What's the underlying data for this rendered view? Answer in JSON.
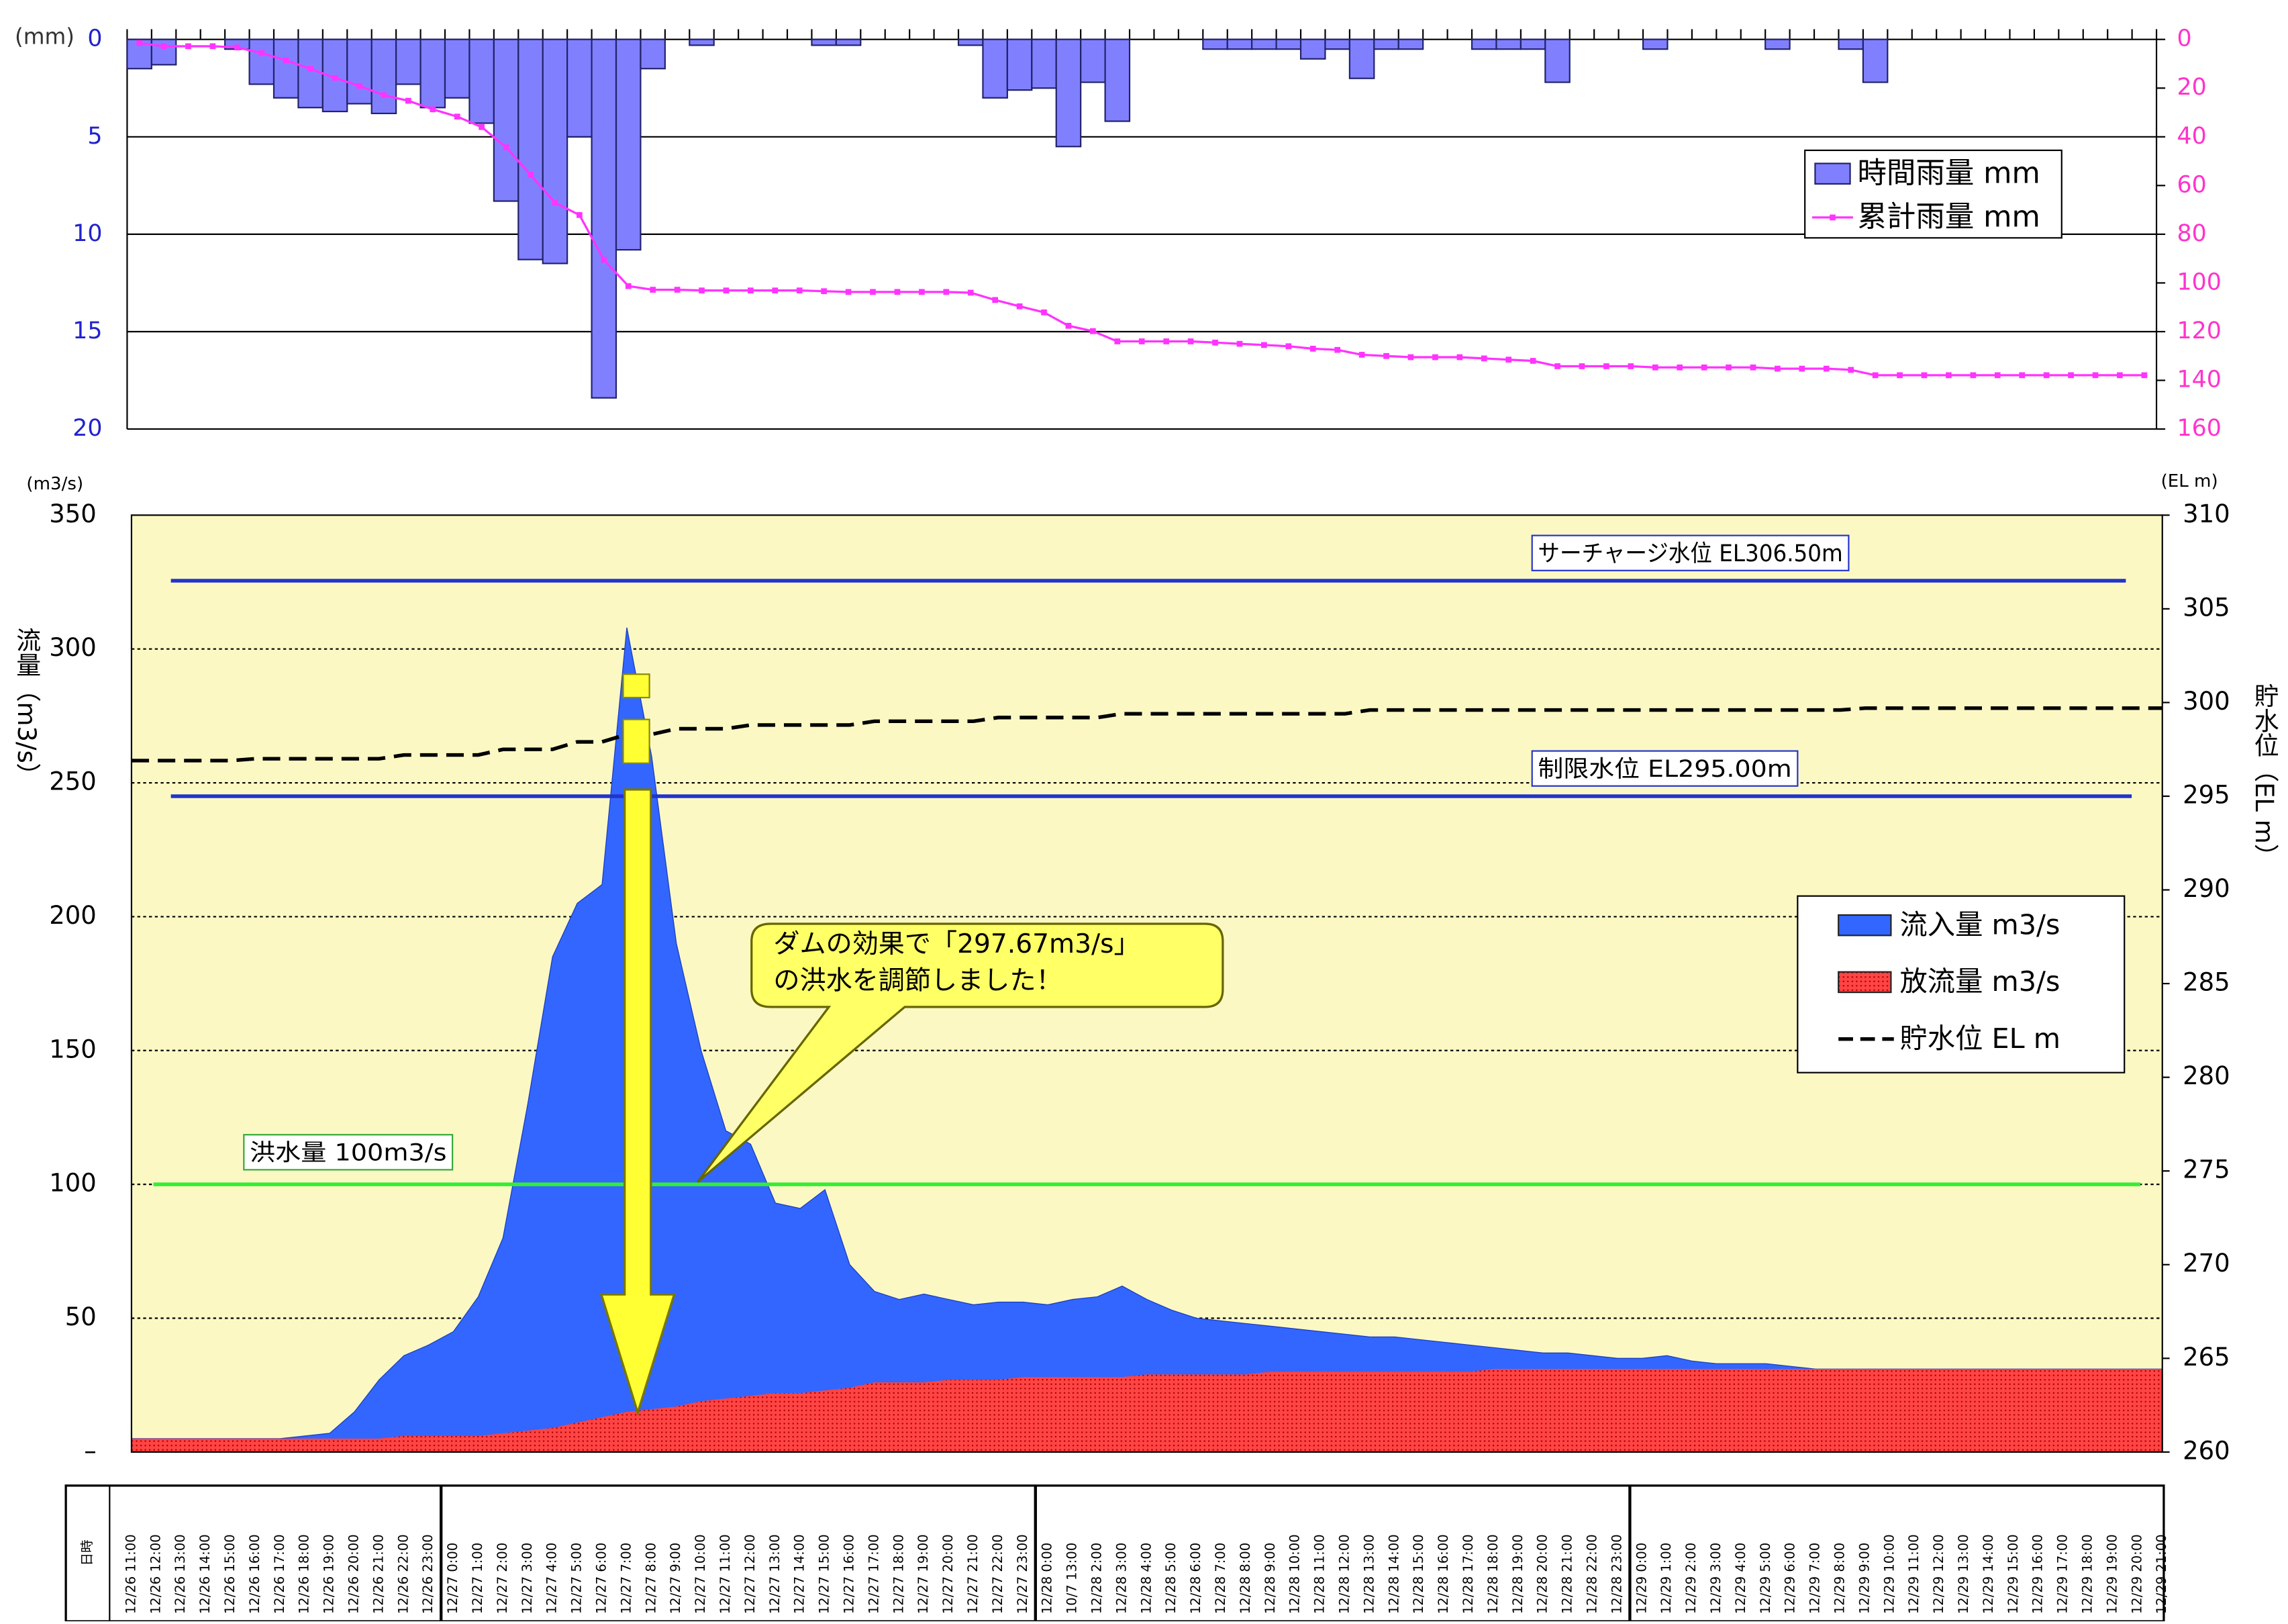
{
  "chart_data": [
    {
      "type": "bar-line",
      "unit_label": "(mm)",
      "inverted": true,
      "ylim": [
        0,
        20
      ],
      "yticks": [
        0,
        5,
        10,
        15,
        20
      ],
      "y2lim": [
        0,
        160
      ],
      "y2ticks": [
        0,
        20,
        40,
        60,
        80,
        100,
        120,
        140,
        160
      ],
      "grid": true,
      "legend": "upper right",
      "series": [
        {
          "name": "時間雨量 mm",
          "type": "bar",
          "color": "#8080ff",
          "values": [
            1.5,
            1.3,
            0,
            0,
            0.5,
            2.3,
            3.0,
            3.5,
            3.7,
            3.3,
            3.8,
            2.3,
            3.5,
            3.0,
            4.3,
            8.3,
            11.3,
            11.5,
            5.0,
            18.4,
            10.8,
            1.5,
            0,
            0.3,
            0,
            0,
            0,
            0,
            0.3,
            0.3,
            0,
            0,
            0,
            0,
            0.3,
            3.0,
            2.6,
            2.5,
            5.5,
            2.2,
            4.2,
            0,
            0,
            0,
            0.5,
            0.5,
            0.5,
            0.5,
            1.0,
            0.5,
            2.0,
            0.5,
            0.5,
            0,
            0,
            0.5,
            0.5,
            0.5,
            2.2,
            0,
            0,
            0,
            0.5,
            0,
            0,
            0,
            0,
            0.5,
            0,
            0,
            0.5,
            2.2,
            0,
            0,
            0,
            0,
            0,
            0,
            0,
            0,
            0,
            0,
            0
          ]
        },
        {
          "name": "累計雨量 mm",
          "type": "line",
          "color": "#ff33ff",
          "axis": "y2",
          "values": [
            1.5,
            2.8,
            2.8,
            2.8,
            3.3,
            5.6,
            8.6,
            12.1,
            15.8,
            19.1,
            22.9,
            25.2,
            28.7,
            31.7,
            36.0,
            44.3,
            55.6,
            67.1,
            72.1,
            90.5,
            101.3,
            102.8,
            102.8,
            103.1,
            103.1,
            103.1,
            103.1,
            103.1,
            103.4,
            103.7,
            103.7,
            103.7,
            103.7,
            103.7,
            104.0,
            107.0,
            109.6,
            112.1,
            117.6,
            119.8,
            124.0,
            124.0,
            124.0,
            124.0,
            124.5,
            125.0,
            125.5,
            126.0,
            127.0,
            127.5,
            129.5,
            130.0,
            130.5,
            130.5,
            130.5,
            131.0,
            131.5,
            132.0,
            134.2,
            134.2,
            134.2,
            134.2,
            134.7,
            134.7,
            134.7,
            134.7,
            134.7,
            135.2,
            135.2,
            135.2,
            135.7,
            137.9,
            137.9,
            137.9,
            137.9,
            137.9,
            137.9,
            137.9,
            137.9,
            137.9,
            137.9,
            137.9,
            137.9
          ]
        }
      ]
    },
    {
      "type": "area",
      "unit_label": "(m3/s)",
      "unit2_label": "(EL m)",
      "ylabel": "流量（m3/s）",
      "y2label": "貯水位（EL m）",
      "x_header": "日時",
      "ylim": [
        0,
        350
      ],
      "yticks": [
        {
          "value": 0,
          "label": "–"
        },
        50,
        100,
        150,
        200,
        250,
        300,
        350
      ],
      "y2lim": [
        260,
        310
      ],
      "y2ticks": [
        260,
        265,
        270,
        275,
        280,
        285,
        290,
        295,
        300,
        305,
        310
      ],
      "grid": true,
      "legend": "right",
      "categories": [
        "12/26 11:00",
        "12/26 12:00",
        "12/26 13:00",
        "12/26 14:00",
        "12/26 15:00",
        "12/26 16:00",
        "12/26 17:00",
        "12/26 18:00",
        "12/26 19:00",
        "12/26 20:00",
        "12/26 21:00",
        "12/26 22:00",
        "12/26 23:00",
        "12/27 0:00",
        "12/27 1:00",
        "12/27 2:00",
        "12/27 3:00",
        "12/27 4:00",
        "12/27 5:00",
        "12/27 6:00",
        "12/27 7:00",
        "12/27 8:00",
        "12/27 9:00",
        "12/27 10:00",
        "12/27 11:00",
        "12/27 12:00",
        "12/27 13:00",
        "12/27 14:00",
        "12/27 15:00",
        "12/27 16:00",
        "12/27 17:00",
        "12/27 18:00",
        "12/27 19:00",
        "12/27 20:00",
        "12/27 21:00",
        "12/27 22:00",
        "12/27 23:00",
        "12/28 0:00",
        "10/7 13:00",
        "12/28 2:00",
        "12/28 3:00",
        "12/28 4:00",
        "12/28 5:00",
        "12/28 6:00",
        "12/28 7:00",
        "12/28 8:00",
        "12/28 9:00",
        "12/28 10:00",
        "12/28 11:00",
        "12/28 12:00",
        "12/28 13:00",
        "12/28 14:00",
        "12/28 15:00",
        "12/28 16:00",
        "12/28 17:00",
        "12/28 18:00",
        "12/28 19:00",
        "12/28 20:00",
        "12/28 21:00",
        "12/28 22:00",
        "12/28 23:00",
        "12/29 0:00",
        "12/29 1:00",
        "12/29 2:00",
        "12/29 3:00",
        "12/29 4:00",
        "12/29 5:00",
        "12/29 6:00",
        "12/29 7:00",
        "12/29 8:00",
        "12/29 9:00",
        "12/29 10:00",
        "12/29 11:00",
        "12/29 12:00",
        "12/29 13:00",
        "12/29 14:00",
        "12/29 15:00",
        "12/29 16:00",
        "12/29 17:00",
        "12/29 18:00",
        "12/29 19:00",
        "12/29 20:00",
        "12/29 21:00"
      ],
      "series": [
        {
          "name": "流入量 m3/s",
          "type": "area",
          "color": "#3366ff",
          "values": [
            5,
            5,
            5,
            5,
            5,
            5,
            5,
            6,
            7,
            15,
            27,
            36,
            40,
            45,
            58,
            80,
            130,
            185,
            205,
            212,
            308,
            260,
            190,
            150,
            120,
            115,
            93,
            91,
            98,
            70,
            60,
            57,
            59,
            57,
            55,
            56,
            56,
            55,
            57,
            58,
            62,
            57,
            53,
            50,
            49,
            48,
            47,
            46,
            45,
            44,
            43,
            43,
            42,
            41,
            40,
            39,
            38,
            37,
            37,
            36,
            35,
            35,
            36,
            34,
            33,
            33,
            33,
            32,
            31,
            31,
            31,
            31,
            31,
            31,
            31,
            31,
            31,
            31,
            31,
            31,
            31,
            31,
            31
          ]
        },
        {
          "name": "放流量 m3/s",
          "type": "area",
          "color": "#ff3333",
          "values": [
            5,
            5,
            5,
            5,
            5,
            5,
            5,
            5,
            5,
            5,
            5,
            6,
            6,
            6,
            6,
            7,
            8,
            9,
            11,
            13,
            15,
            16,
            17,
            19,
            20,
            21,
            22,
            22,
            23,
            24,
            26,
            26,
            26,
            27,
            27,
            27,
            28,
            28,
            28,
            28,
            28,
            29,
            29,
            29,
            29,
            29,
            30,
            30,
            30,
            30,
            30,
            30,
            30,
            30,
            30,
            31,
            31,
            31,
            31,
            31,
            31,
            31,
            31,
            31,
            31,
            31,
            31,
            31,
            31,
            31,
            31,
            31,
            31,
            31,
            31,
            31,
            31,
            31,
            31,
            31,
            31,
            31,
            31
          ]
        },
        {
          "name": "貯水位 EL m",
          "type": "line",
          "color": "#000000",
          "dashed": true,
          "axis": "y2",
          "values": [
            296.9,
            296.9,
            296.9,
            296.9,
            296.9,
            297.0,
            297.0,
            297.0,
            297.0,
            297.0,
            297.0,
            297.2,
            297.2,
            297.2,
            297.2,
            297.5,
            297.5,
            297.5,
            297.9,
            297.9,
            298.3,
            298.3,
            298.6,
            298.6,
            298.6,
            298.8,
            298.8,
            298.8,
            298.8,
            298.8,
            299.0,
            299.0,
            299.0,
            299.0,
            299.0,
            299.2,
            299.2,
            299.2,
            299.2,
            299.2,
            299.4,
            299.4,
            299.4,
            299.4,
            299.4,
            299.4,
            299.4,
            299.4,
            299.4,
            299.4,
            299.6,
            299.6,
            299.6,
            299.6,
            299.6,
            299.6,
            299.6,
            299.6,
            299.6,
            299.6,
            299.6,
            299.6,
            299.6,
            299.6,
            299.6,
            299.6,
            299.6,
            299.6,
            299.6,
            299.6,
            299.7,
            299.7,
            299.7,
            299.7,
            299.7,
            299.7,
            299.7,
            299.7,
            299.7,
            299.7,
            299.7,
            299.7,
            299.7
          ]
        }
      ],
      "reference_lines": [
        {
          "label": "サーチャージ水位 EL306.50m",
          "value": 306.5,
          "axis": "y2",
          "color": "#2233cc"
        },
        {
          "label": "制限水位 EL295.00m",
          "value": 295,
          "axis": "y2",
          "color": "#2233cc"
        },
        {
          "label": "洪水量 100m3/s",
          "value": 100,
          "axis": "y",
          "color": "#33ee33"
        }
      ],
      "annotation": [
        "ダムの効果で「297.67m3/s」",
        "の洪水を調節しました！"
      ]
    }
  ]
}
